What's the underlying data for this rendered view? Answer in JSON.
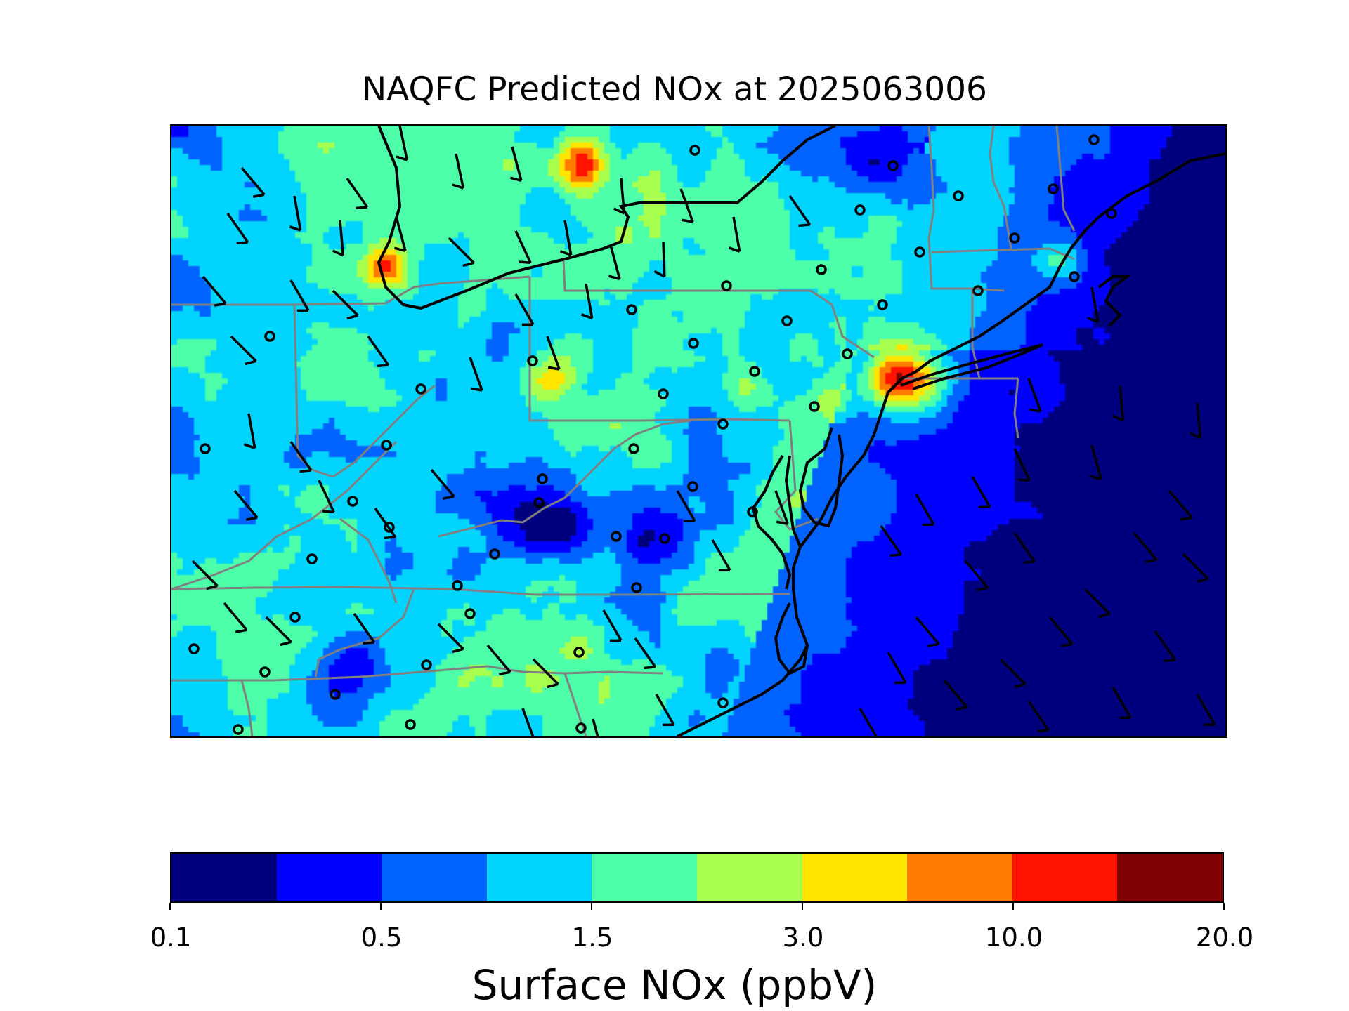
{
  "title": "NAQFC Predicted NOx at 2025063006",
  "colorbar": {
    "label": "Surface NOx (ppbV)",
    "ticks": [
      "0.1",
      "0.5",
      "1.5",
      "3.0",
      "10.0",
      "20.0"
    ],
    "colors": [
      "#00007f",
      "#0000ff",
      "#0063ff",
      "#00d4ff",
      "#4dffa9",
      "#a9ff4d",
      "#ffe500",
      "#ff7c00",
      "#ff1300",
      "#7f0000"
    ]
  },
  "map": {
    "region": "Mid-Atlantic and Northeast United States",
    "features": [
      "NOx concentration field",
      "coastlines",
      "state borders",
      "wind barbs",
      "monitoring sites"
    ]
  }
}
